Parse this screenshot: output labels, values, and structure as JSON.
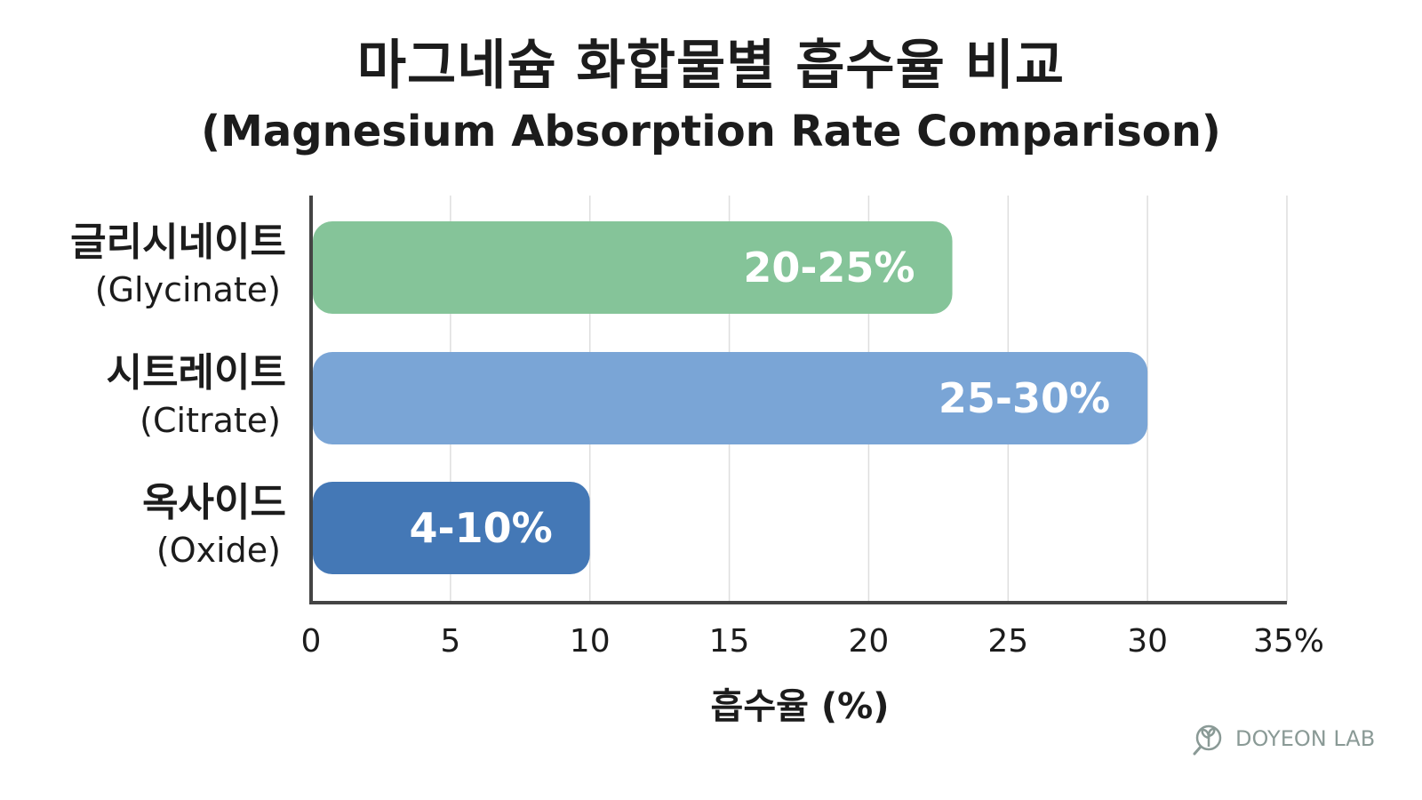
{
  "chart_data": {
    "type": "bar",
    "orientation": "horizontal",
    "title": "마그네슘 화합물별 흡수율 비교",
    "subtitle": "(Magnesium Absorption Rate Comparison)",
    "xlabel": "흡수율 (%)",
    "xlim": [
      0,
      35
    ],
    "x_ticks": [
      "0",
      "5",
      "10",
      "15",
      "20",
      "25",
      "30",
      "35%"
    ],
    "x_tick_values": [
      0,
      5,
      10,
      15,
      20,
      25,
      30,
      35
    ],
    "grid": "vertical",
    "categories": [
      {
        "label_ko": "글리시네이트",
        "label_en": "(Glycinate)",
        "range": [
          20,
          25
        ],
        "value": 23,
        "value_label": "20-25%",
        "color": "#85c499"
      },
      {
        "label_ko": "시트레이트",
        "label_en": "(Citrate)",
        "range": [
          25,
          30
        ],
        "value": 30,
        "value_label": "25-30%",
        "color": "#7aa5d6"
      },
      {
        "label_ko": "옥사이드",
        "label_en": "(Oxide)",
        "range": [
          4,
          10
        ],
        "value": 10,
        "value_label": "4-10%",
        "color": "#4478b6"
      }
    ]
  },
  "watermark": {
    "text": "DOYEON LAB",
    "icon": "sprout-icon"
  }
}
